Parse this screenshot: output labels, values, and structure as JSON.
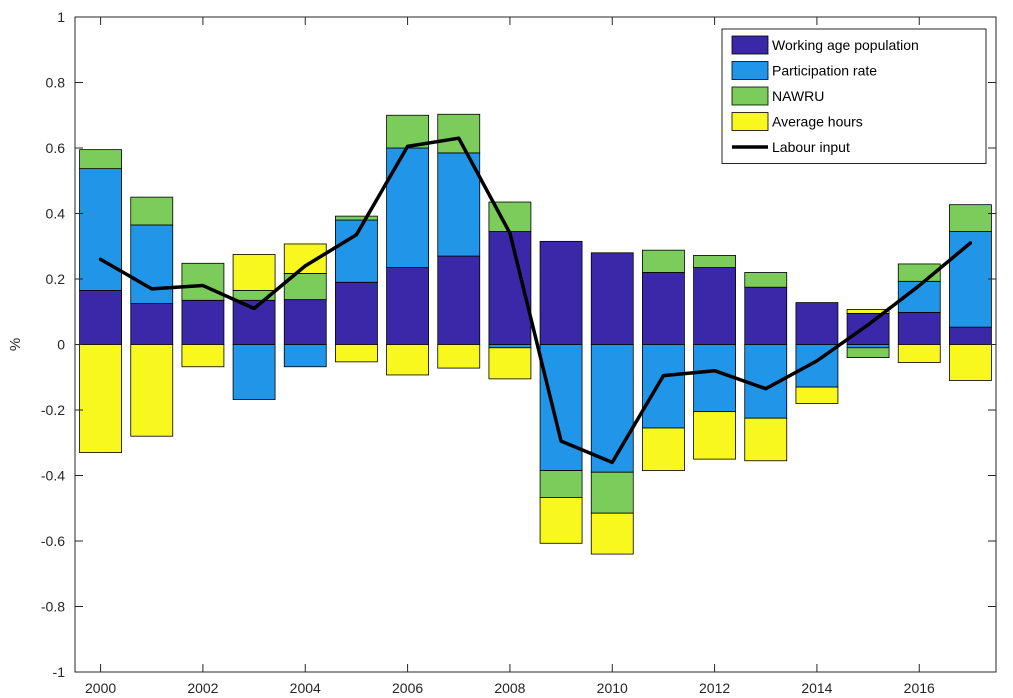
{
  "chart_data": {
    "type": "bar",
    "stacked": true,
    "xlabel": "",
    "ylabel": "%",
    "ylim": [
      -1,
      1
    ],
    "xlim": [
      1999.5,
      2017.5
    ],
    "x": [
      2000,
      2001,
      2002,
      2003,
      2004,
      2005,
      2006,
      2007,
      2008,
      2009,
      2010,
      2011,
      2012,
      2013,
      2014,
      2015,
      2016,
      2017
    ],
    "xticks": [
      2000,
      2002,
      2004,
      2006,
      2008,
      2010,
      2012,
      2014,
      2016
    ],
    "xtick_labels": [
      "2000",
      "2002",
      "2004",
      "2006",
      "2008",
      "2010",
      "2012",
      "2014",
      "2016"
    ],
    "yticks": [
      -1,
      -0.8,
      -0.6,
      -0.4,
      -0.2,
      0,
      0.2,
      0.4,
      0.6,
      0.8,
      1
    ],
    "ytick_labels": [
      "-1",
      "-0.8",
      "-0.6",
      "-0.4",
      "-0.2",
      "0",
      "0.2",
      "0.4",
      "0.6",
      "0.8",
      "1"
    ],
    "grid": false,
    "legend_position": "top-right",
    "series": [
      {
        "name": "Working age population",
        "kind": "bar",
        "color": "#3b28a8",
        "values": [
          0.165,
          0.125,
          0.135,
          0.135,
          0.137,
          0.19,
          0.235,
          0.27,
          0.345,
          0.315,
          0.28,
          0.22,
          0.235,
          0.175,
          0.128,
          0.095,
          0.098,
          0.053
        ]
      },
      {
        "name": "Participation rate",
        "kind": "bar",
        "color": "#2196e8",
        "values": [
          0.372,
          0.24,
          0.0,
          -0.168,
          -0.068,
          0.19,
          0.365,
          0.315,
          -0.01,
          -0.385,
          -0.39,
          -0.255,
          -0.205,
          -0.225,
          -0.13,
          -0.01,
          0.095,
          0.292
        ]
      },
      {
        "name": "NAWRU",
        "kind": "bar",
        "color": "#7ccc5c",
        "values": [
          0.058,
          0.085,
          0.113,
          0.03,
          0.08,
          0.012,
          0.1,
          0.118,
          0.09,
          -0.082,
          -0.125,
          0.068,
          0.037,
          0.045,
          0.0,
          -0.03,
          0.053,
          0.082
        ]
      },
      {
        "name": "Average hours",
        "kind": "bar",
        "color": "#f8f81f",
        "values": [
          -0.33,
          -0.28,
          -0.068,
          0.11,
          0.09,
          -0.053,
          -0.093,
          -0.072,
          -0.095,
          -0.14,
          -0.125,
          -0.13,
          -0.145,
          -0.13,
          -0.05,
          0.012,
          -0.055,
          -0.11
        ]
      },
      {
        "name": "Labour input",
        "kind": "line",
        "color": "#000000",
        "values": [
          0.26,
          0.17,
          0.18,
          0.11,
          0.24,
          0.335,
          0.605,
          0.63,
          0.34,
          -0.295,
          -0.36,
          -0.095,
          -0.08,
          -0.135,
          -0.05,
          0.06,
          0.18,
          0.31
        ]
      }
    ]
  }
}
